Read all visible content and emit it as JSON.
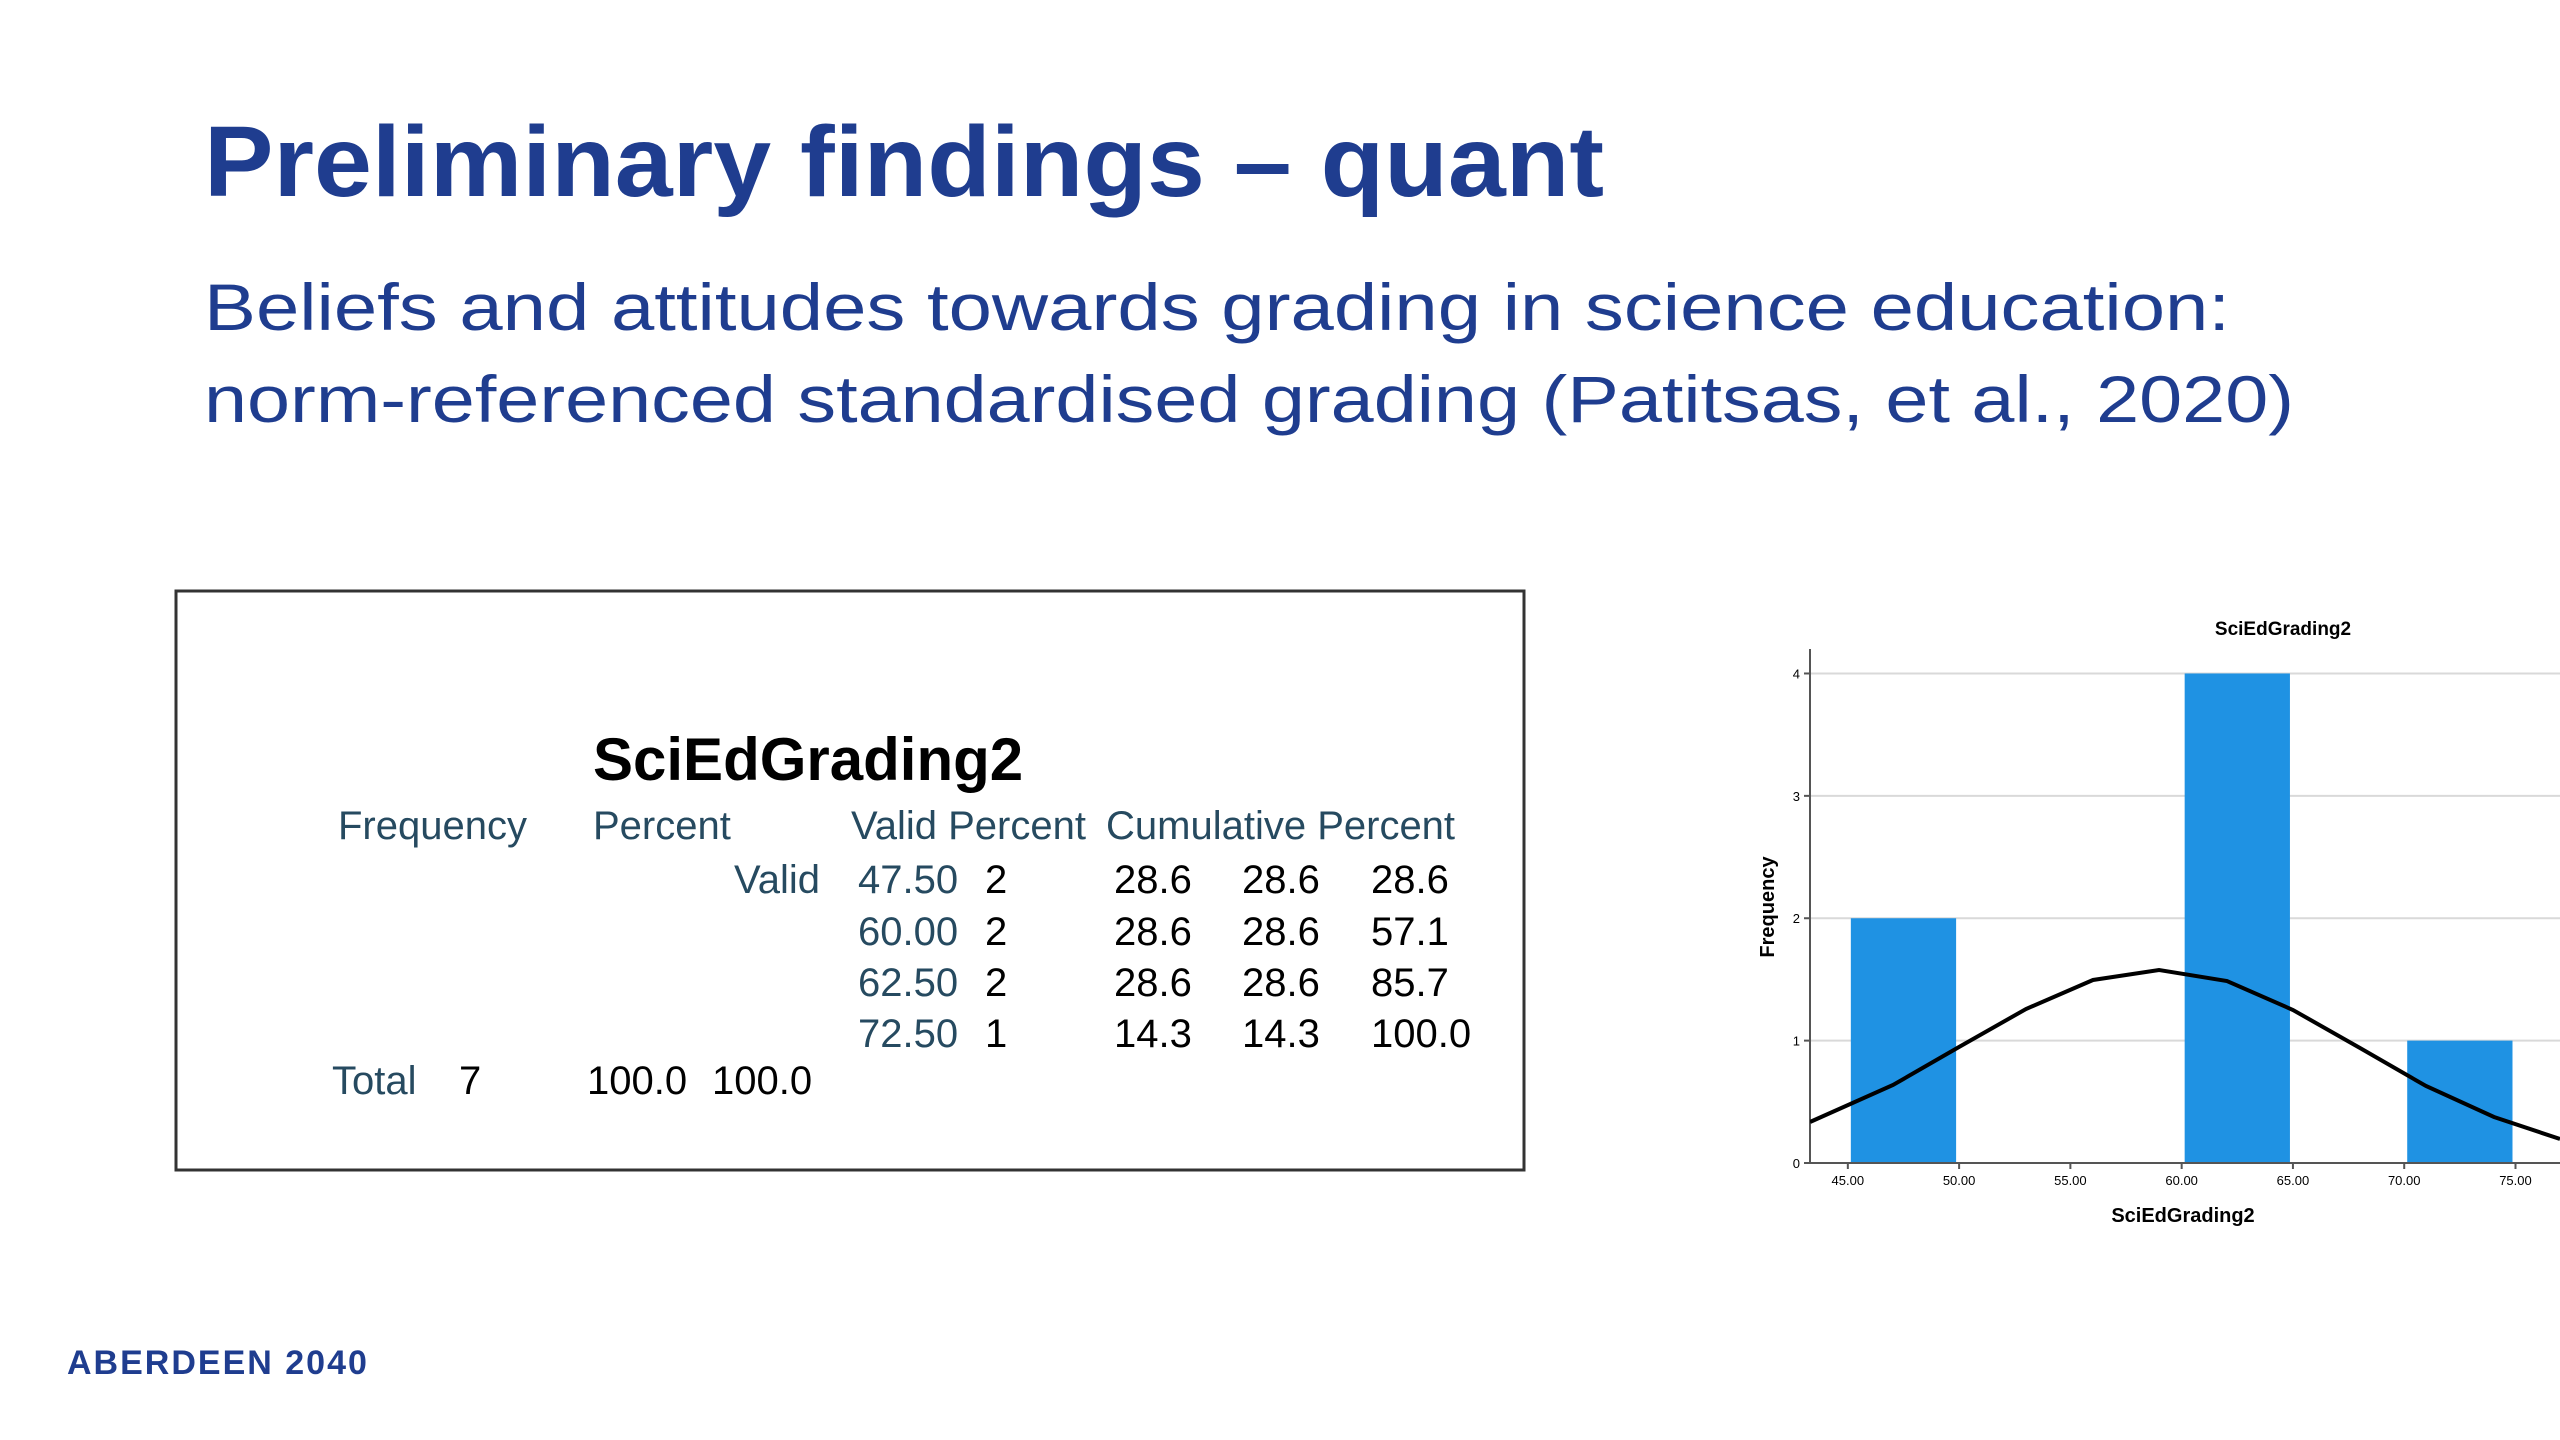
{
  "title": "Preliminary findings – quant",
  "subtitle": [
    "Beliefs and attitudes towards grading in science education:",
    "norm-referenced standardised grading (Patitsas, et al., 2020)"
  ],
  "table": {
    "title": "SciEdGrading2",
    "headers": [
      "Frequency",
      "Percent",
      "Valid Percent",
      "Cumulative Percent"
    ],
    "row_label": "Valid",
    "rows": [
      [
        "47.50",
        "2",
        "28.6",
        "28.6",
        "28.6"
      ],
      [
        "60.00",
        "2",
        "28.6",
        "28.6",
        "57.1"
      ],
      [
        "62.50",
        "2",
        "28.6",
        "28.6",
        "85.7"
      ],
      [
        "72.50",
        "1",
        "14.3",
        "14.3",
        "100.0"
      ]
    ],
    "total": [
      "Total",
      "7",
      "100.0",
      "100.0"
    ]
  },
  "chart_data": {
    "type": "histogram",
    "title": "SciEdGrading2",
    "x_label": "SciEdGrading2",
    "y_label": "Frequency",
    "bins": [
      45,
      50,
      55,
      60,
      65,
      70,
      75
    ],
    "values": [
      2,
      0,
      0,
      4,
      0,
      1
    ],
    "color": "#1f92e3",
    "xlim": [
      43.3,
      77
    ],
    "ylim": [
      0,
      4.2
    ],
    "xticks": [
      {
        "value": 45,
        "label": "45.00"
      },
      {
        "value": 50,
        "label": "50.00"
      },
      {
        "value": 55,
        "label": "55.00"
      },
      {
        "value": 60,
        "label": "60.00"
      },
      {
        "value": 65,
        "label": "65.00"
      },
      {
        "value": 70,
        "label": "70.00"
      },
      {
        "value": 75,
        "label": "75.00"
      }
    ],
    "yticks": [
      0,
      1,
      2,
      3,
      4
    ],
    "grid": true
  },
  "footer": "ABERDEEN 2040"
}
